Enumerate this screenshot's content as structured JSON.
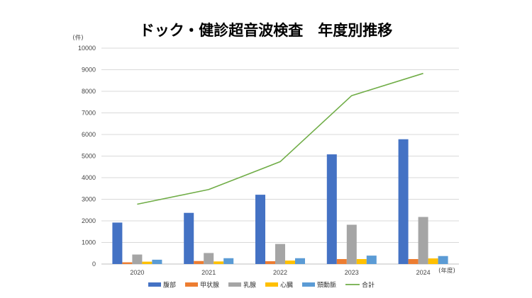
{
  "chart_data": {
    "type": "bar",
    "title": "ドック・健診超音波検査　年度別推移",
    "ylabel": "(件)",
    "xlabel": "(年度)",
    "categories": [
      "2020",
      "2021",
      "2022",
      "2023",
      "2024"
    ],
    "ylim": [
      0,
      10000
    ],
    "yticks": [
      0,
      1000,
      2000,
      3000,
      4000,
      5000,
      6000,
      7000,
      8000,
      9000,
      10000
    ],
    "grid": true,
    "legend_position": "bottom",
    "series": [
      {
        "name": "腹部",
        "type": "bar",
        "color": "#4472C4",
        "values": [
          1920,
          2370,
          3210,
          5080,
          5780
        ]
      },
      {
        "name": "甲状腺",
        "type": "bar",
        "color": "#ED7D31",
        "values": [
          80,
          140,
          130,
          230,
          230
        ]
      },
      {
        "name": "乳腺",
        "type": "bar",
        "color": "#A5A5A5",
        "values": [
          440,
          510,
          930,
          1820,
          2180
        ]
      },
      {
        "name": "心臓",
        "type": "bar",
        "color": "#FFC000",
        "values": [
          110,
          120,
          160,
          230,
          260
        ]
      },
      {
        "name": "頸動脈",
        "type": "bar",
        "color": "#5B9BD5",
        "values": [
          200,
          270,
          270,
          390,
          370
        ]
      },
      {
        "name": "合計",
        "type": "line",
        "color": "#70AD47",
        "values": [
          2770,
          3450,
          4740,
          7800,
          8830
        ]
      }
    ]
  }
}
